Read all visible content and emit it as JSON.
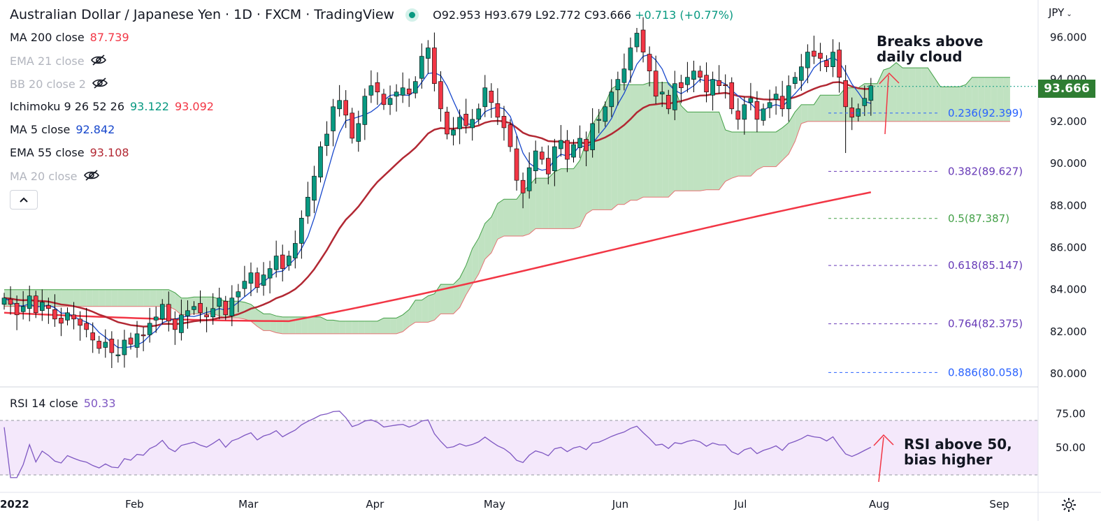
{
  "header": {
    "title": "Australian Dollar / Japanese Yen · 1D · FXCM · TradingView",
    "open": "O92.953",
    "high": "H93.679",
    "low": "L92.772",
    "close": "C93.666",
    "change": "+0.713 (+0.77%)"
  },
  "indicators": [
    {
      "name": "MA 200 close",
      "values": [
        "87.739"
      ],
      "colors": [
        "#f23645"
      ],
      "hidden": false
    },
    {
      "name": "EMA 21 close",
      "values": [],
      "colors": [],
      "hidden": true
    },
    {
      "name": "BB 20 close 2",
      "values": [],
      "colors": [],
      "hidden": true
    },
    {
      "name": "Ichimoku 9 26 52 26",
      "values": [
        "93.122",
        "93.092"
      ],
      "colors": [
        "#089981",
        "#f23645"
      ],
      "hidden": false
    },
    {
      "name": "MA 5 close",
      "values": [
        "92.842"
      ],
      "colors": [
        "#1848cc"
      ],
      "hidden": false
    },
    {
      "name": "EMA 55 close",
      "values": [
        "93.108"
      ],
      "colors": [
        "#b22833"
      ],
      "hidden": false
    },
    {
      "name": "MA 20 close",
      "values": [],
      "colors": [],
      "hidden": true
    }
  ],
  "currency": "JPY",
  "last_price": "93.666",
  "rsi_legend": {
    "name": "RSI 14 close",
    "value": "50.33"
  },
  "annotations": {
    "cloud_note_line1": "Breaks above",
    "cloud_note_line2": "daily cloud",
    "rsi_note_line1": "RSI above 50,",
    "rsi_note_line2": "bias higher"
  },
  "colors": {
    "up": "#089981",
    "down": "#f23645",
    "ma200": "#f23645",
    "ema55": "#b22833",
    "ma5": "#1848cc",
    "cloud_bull": "#a5d6a7",
    "cloud_bear": "#f28b8b",
    "rsi": "#7e57c2"
  },
  "chart_data": {
    "type": "candlestick",
    "title": "Australian Dollar / Japanese Yen · 1D · FXCM · TradingView",
    "price_axis": {
      "ticks": [
        "80.000",
        "82.000",
        "84.000",
        "86.000",
        "88.000",
        "90.000",
        "92.000",
        "94.000",
        "96.000"
      ],
      "range": [
        79.3,
        97.6
      ]
    },
    "time_axis": {
      "ticks": [
        "2022",
        "Feb",
        "Mar",
        "Apr",
        "May",
        "Jun",
        "Jul",
        "Aug",
        "Sep"
      ]
    },
    "fibonacci": [
      {
        "label": "0.236(92.399)",
        "value": 92.399,
        "color": "#2962ff"
      },
      {
        "label": "0.382(89.627)",
        "value": 89.627,
        "color": "#673ab7"
      },
      {
        "label": "0.5(87.387)",
        "value": 87.387,
        "color": "#43a047"
      },
      {
        "label": "0.618(85.147)",
        "value": 85.147,
        "color": "#673ab7"
      },
      {
        "label": "0.764(82.375)",
        "value": 82.375,
        "color": "#673ab7"
      },
      {
        "label": "0.886(80.058)",
        "value": 80.058,
        "color": "#2962ff"
      }
    ],
    "close_series": [
      83.6,
      83.3,
      82.8,
      83.2,
      83.7,
      82.9,
      83.4,
      83.1,
      82.6,
      82.4,
      82.9,
      82.6,
      82.3,
      82.1,
      81.6,
      81.2,
      81.5,
      81.0,
      80.9,
      81.6,
      81.4,
      81.9,
      81.8,
      82.4,
      82.7,
      83.3,
      82.5,
      82.1,
      82.8,
      83.0,
      83.2,
      82.9,
      82.7,
      83.1,
      83.6,
      82.8,
      83.6,
      83.9,
      84.4,
      84.8,
      84.1,
      84.7,
      85.0,
      85.6,
      85.0,
      85.6,
      86.2,
      87.4,
      88.4,
      89.4,
      90.8,
      91.4,
      92.7,
      93.0,
      92.3,
      91.2,
      91.9,
      93.2,
      93.7,
      93.4,
      92.8,
      93.1,
      93.4,
      93.6,
      93.3,
      93.9,
      95.1,
      95.5,
      93.8,
      92.6,
      91.4,
      91.6,
      92.2,
      91.8,
      92.1,
      92.6,
      93.6,
      92.9,
      92.2,
      91.7,
      90.8,
      89.2,
      88.6,
      89.8,
      90.6,
      90.2,
      89.5,
      90.8,
      91.1,
      90.2,
      90.9,
      91.2,
      90.6,
      91.9,
      92.1,
      92.7,
      93.4,
      94.0,
      94.5,
      95.5,
      96.2,
      95.3,
      94.4,
      93.2,
      93.4,
      92.6,
      93.8,
      93.6,
      94.1,
      94.4,
      94.1,
      93.4,
      94.0,
      93.7,
      93.7,
      92.6,
      92.1,
      92.8,
      93.1,
      92.1,
      92.6,
      92.9,
      93.3,
      92.6,
      93.7,
      94.1,
      94.6,
      95.3,
      95.1,
      95.0,
      94.6,
      95.3,
      94.1,
      92.7,
      92.2,
      92.6,
      93.1,
      93.7
    ],
    "rsi": {
      "levels": [
        70,
        30
      ],
      "axis_ticks": [
        "75.00",
        "50.00"
      ],
      "last": 50.33
    }
  }
}
